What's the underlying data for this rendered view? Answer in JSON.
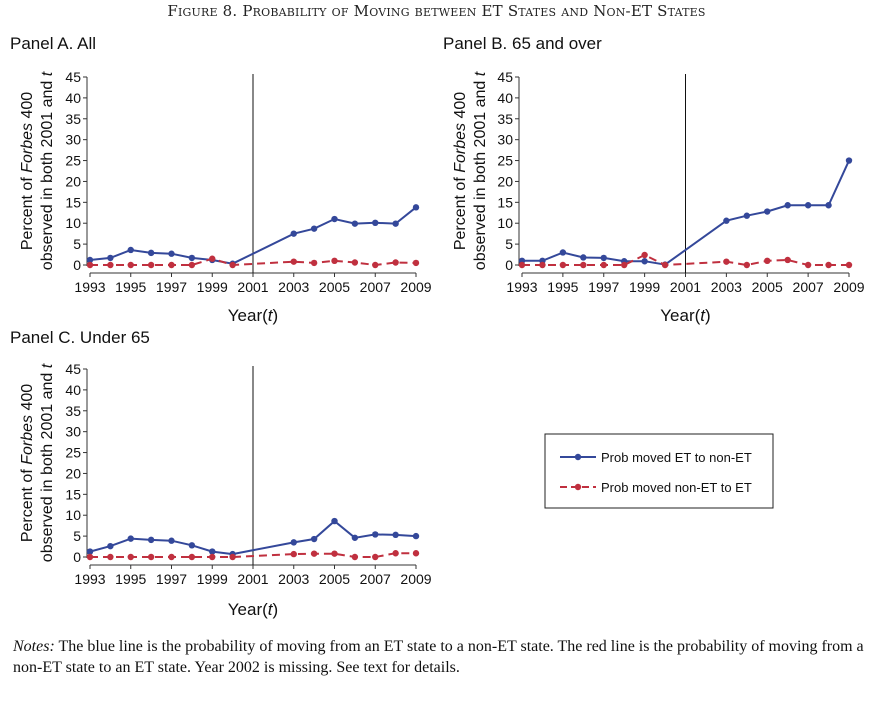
{
  "figure_title": "Figure 8. Probability of Moving between ET States and Non-ET States",
  "notes": {
    "label": "Notes:",
    "text": " The blue line is the probability of moving from an ET state to a non-ET state. The red line is the probability of moving from a non-ET state to an ET state. Year 2002 is missing. See text for details."
  },
  "colors": {
    "blue": "#34489a",
    "red": "#c0303f",
    "axis": "#333333",
    "vline": "#111111"
  },
  "legend": {
    "entries": [
      "Prob moved ET to non-ET",
      "Prob moved non-ET to ET"
    ]
  },
  "axis_text": {
    "ylabel_line1_pre": "Percent of ",
    "ylabel_line1_em": "Forbes",
    "ylabel_line1_post": " 400",
    "ylabel_line2_pre": "observed in both 2001 and ",
    "ylabel_line2_em": "t",
    "xlabel_pre": "Year(",
    "xlabel_em": "t",
    "xlabel_post": ")"
  },
  "chart_data": [
    {
      "type": "line",
      "title": "Panel A. All",
      "x_ticks": [
        1993,
        1995,
        1997,
        1999,
        2001,
        2003,
        2005,
        2007,
        2009
      ],
      "y_ticks": [
        0,
        5,
        10,
        15,
        20,
        25,
        30,
        35,
        40,
        45
      ],
      "xlim": [
        1993,
        2009
      ],
      "ylim": [
        0,
        45
      ],
      "vline": 2001,
      "series": [
        {
          "name": "Prob moved ET to non-ET",
          "x": [
            1993,
            1994,
            1995,
            1996,
            1997,
            1998,
            1999,
            2000,
            2003,
            2004,
            2005,
            2006,
            2007,
            2008,
            2009
          ],
          "y": [
            1.2,
            1.7,
            3.6,
            2.9,
            2.7,
            1.7,
            1.2,
            0.3,
            7.5,
            8.7,
            11.0,
            9.9,
            10.1,
            9.9,
            13.8
          ]
        },
        {
          "name": "Prob moved non-ET to ET",
          "x": [
            1993,
            1994,
            1995,
            1996,
            1997,
            1998,
            1999,
            2000,
            2003,
            2004,
            2005,
            2006,
            2007,
            2008,
            2009
          ],
          "y": [
            0,
            0,
            0,
            0,
            0,
            0,
            1.5,
            0,
            0.8,
            0.5,
            1.0,
            0.6,
            0,
            0.6,
            0.5
          ]
        }
      ]
    },
    {
      "type": "line",
      "title": "Panel B. 65 and over",
      "x_ticks": [
        1993,
        1995,
        1997,
        1999,
        2001,
        2003,
        2005,
        2007,
        2009
      ],
      "y_ticks": [
        0,
        5,
        10,
        15,
        20,
        25,
        30,
        35,
        40,
        45
      ],
      "xlim": [
        1993,
        2009
      ],
      "ylim": [
        0,
        45
      ],
      "vline": 2001,
      "series": [
        {
          "name": "Prob moved ET to non-ET",
          "x": [
            1993,
            1994,
            1995,
            1996,
            1997,
            1998,
            1999,
            2000,
            2003,
            2004,
            2005,
            2006,
            2007,
            2008,
            2009
          ],
          "y": [
            1.0,
            1.0,
            3.0,
            1.8,
            1.7,
            0.9,
            0.9,
            0.1,
            10.6,
            11.8,
            12.8,
            14.3,
            14.3,
            14.3,
            25.0
          ]
        },
        {
          "name": "Prob moved non-ET to ET",
          "x": [
            1993,
            1994,
            1995,
            1996,
            1997,
            1998,
            1999,
            2000,
            2003,
            2004,
            2005,
            2006,
            2007,
            2008,
            2009
          ],
          "y": [
            0,
            0,
            0,
            0,
            0,
            0,
            2.4,
            0,
            0.8,
            0,
            1.0,
            1.2,
            0,
            0,
            0
          ]
        }
      ]
    },
    {
      "type": "line",
      "title": "Panel C. Under 65",
      "x_ticks": [
        1993,
        1995,
        1997,
        1999,
        2001,
        2003,
        2005,
        2007,
        2009
      ],
      "y_ticks": [
        0,
        5,
        10,
        15,
        20,
        25,
        30,
        35,
        40,
        45
      ],
      "xlim": [
        1993,
        2009
      ],
      "ylim": [
        0,
        45
      ],
      "vline": 2001,
      "series": [
        {
          "name": "Prob moved ET to non-ET",
          "x": [
            1993,
            1994,
            1995,
            1996,
            1997,
            1998,
            1999,
            2000,
            2003,
            2004,
            2005,
            2006,
            2007,
            2008,
            2009
          ],
          "y": [
            1.3,
            2.6,
            4.4,
            4.1,
            3.9,
            2.8,
            1.3,
            0.7,
            3.5,
            4.3,
            8.6,
            4.6,
            5.4,
            5.3,
            5.0
          ]
        },
        {
          "name": "Prob moved non-ET to ET",
          "x": [
            1993,
            1994,
            1995,
            1996,
            1997,
            1998,
            1999,
            2000,
            2003,
            2004,
            2005,
            2006,
            2007,
            2008,
            2009
          ],
          "y": [
            0,
            0,
            0,
            0,
            0,
            0,
            0,
            0,
            0.7,
            0.8,
            0.8,
            0,
            0,
            0.9,
            0.9
          ]
        }
      ]
    }
  ]
}
